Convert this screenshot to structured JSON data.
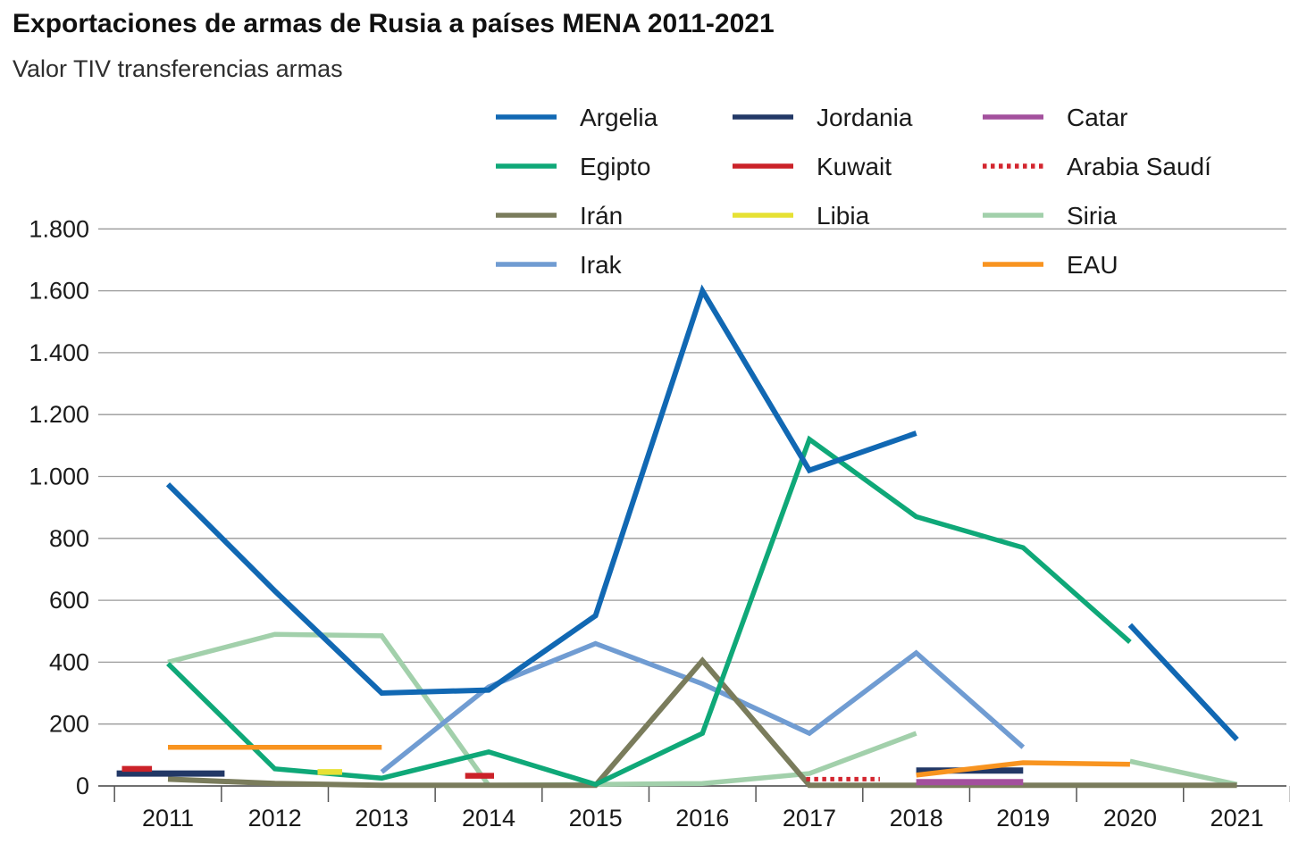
{
  "header": {
    "title": "Exportaciones de armas de Rusia a países MENA 2011-2021",
    "subtitle": "Valor TIV transferencias armas"
  },
  "chart_data": {
    "type": "line",
    "title": "Exportaciones de armas de Rusia a países MENA 2011-2021",
    "subtitle": "Valor TIV transferencias armas",
    "xlabel": "",
    "ylabel": "",
    "x_categories": [
      2011,
      2012,
      2013,
      2014,
      2015,
      2016,
      2017,
      2018,
      2019,
      2020,
      2021
    ],
    "x_tick_labels": [
      "2011",
      "2012",
      "2013",
      "2014",
      "2015",
      "2016",
      "2017",
      "2018",
      "2019",
      "2020",
      "2021"
    ],
    "ylim": [
      0,
      1800
    ],
    "ytick_step": 200,
    "ytick_values": [
      0,
      200,
      400,
      600,
      800,
      1000,
      1200,
      1400,
      1600,
      1800
    ],
    "ytick_labels": [
      "0",
      "200",
      "400",
      "600",
      "800",
      "1.000",
      "1.200",
      "1.400",
      "1.600",
      "1.800"
    ],
    "grid": true,
    "legend_position": "top-right",
    "series": [
      {
        "name": "Siria",
        "color": "#A2D0AB",
        "dash": "solid",
        "width": 5.5,
        "segments": [
          [
            [
              2011,
              400
            ],
            [
              2012,
              490
            ],
            [
              2013,
              485
            ],
            [
              2014,
              2
            ],
            [
              2015,
              5
            ],
            [
              2016,
              8
            ],
            [
              2017,
              40
            ],
            [
              2018,
              170
            ]
          ],
          [
            [
              2020,
              80
            ],
            [
              2021,
              5
            ]
          ]
        ]
      },
      {
        "name": "Irak",
        "color": "#709CD2",
        "dash": "solid",
        "width": 5.5,
        "segments": [
          [
            [
              2013,
              45
            ],
            [
              2014,
              320
            ],
            [
              2015,
              460
            ],
            [
              2016,
              330
            ],
            [
              2017,
              170
            ],
            [
              2018,
              430
            ],
            [
              2019,
              125
            ]
          ]
        ]
      },
      {
        "name": "Irán",
        "color": "#7A7C5C",
        "dash": "solid",
        "width": 6,
        "segments": [
          [
            [
              2011,
              22
            ],
            [
              2012,
              8
            ],
            [
              2013,
              2
            ],
            [
              2014,
              2
            ],
            [
              2015,
              2
            ],
            [
              2016,
              405
            ],
            [
              2017,
              2
            ],
            [
              2018,
              2
            ],
            [
              2019,
              2
            ],
            [
              2020,
              2
            ],
            [
              2021,
              2
            ]
          ]
        ]
      },
      {
        "name": "Egipto",
        "color": "#0FA878",
        "dash": "solid",
        "width": 5.5,
        "segments": [
          [
            [
              2011,
              395
            ],
            [
              2012,
              55
            ],
            [
              2013,
              25
            ],
            [
              2014,
              110
            ],
            [
              2015,
              5
            ],
            [
              2016,
              170
            ],
            [
              2017,
              1120
            ],
            [
              2018,
              870
            ],
            [
              2019,
              770
            ],
            [
              2020,
              465
            ]
          ]
        ]
      },
      {
        "name": "Jordania",
        "color": "#223866",
        "dash": "solid",
        "width": 7,
        "segments": [
          [
            [
              2010.52,
              40
            ],
            [
              2011.53,
              40
            ]
          ],
          [
            [
              2018,
              50
            ],
            [
              2019,
              50
            ]
          ]
        ]
      },
      {
        "name": "Catar",
        "color": "#A3509D",
        "dash": "solid",
        "width": 7,
        "segments": [
          [
            [
              2018,
              12
            ],
            [
              2019,
              12
            ]
          ]
        ]
      },
      {
        "name": "Kuwait",
        "color": "#CB2229",
        "dash": "solid",
        "width": 6.5,
        "segments": [
          [
            [
              2010.57,
              55
            ],
            [
              2010.85,
              55
            ]
          ],
          [
            [
              2013.78,
              33
            ],
            [
              2014.05,
              33
            ]
          ]
        ]
      },
      {
        "name": "Libia",
        "color": "#E6E134",
        "dash": "solid",
        "width": 6.5,
        "segments": [
          [
            [
              2012.4,
              45
            ],
            [
              2012.63,
              45
            ]
          ]
        ]
      },
      {
        "name": "Arabia Saudí",
        "color": "#D3262F",
        "dash": "dotted",
        "width": 5,
        "segments": [
          [
            [
              2016.97,
              22
            ],
            [
              2017.66,
              22
            ]
          ]
        ]
      },
      {
        "name": "EAU",
        "color": "#F89420",
        "dash": "solid",
        "width": 5.5,
        "segments": [
          [
            [
              2011,
              125
            ],
            [
              2012,
              125
            ],
            [
              2013,
              125
            ]
          ],
          [
            [
              2018,
              35
            ],
            [
              2019,
              75
            ],
            [
              2020,
              70
            ]
          ]
        ]
      },
      {
        "name": "Argelia",
        "color": "#1168B3",
        "dash": "solid",
        "width": 6,
        "segments": [
          [
            [
              2011,
              975
            ],
            [
              2012,
              630
            ],
            [
              2013,
              300
            ],
            [
              2014,
              310
            ],
            [
              2015,
              550
            ],
            [
              2016,
              1600
            ],
            [
              2017,
              1020
            ],
            [
              2018,
              1140
            ]
          ],
          [
            [
              2020,
              520
            ],
            [
              2021,
              150
            ]
          ]
        ]
      }
    ]
  },
  "legend": {
    "columns": [
      [
        "Argelia",
        "Egipto",
        "Irán",
        "Irak"
      ],
      [
        "Jordania",
        "Kuwait",
        "Libia"
      ],
      [
        "Catar",
        "Arabia Saudí",
        "Siria",
        "EAU"
      ]
    ]
  }
}
